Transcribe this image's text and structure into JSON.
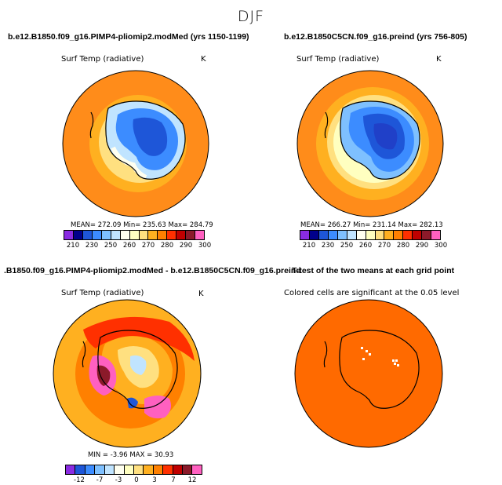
{
  "figure_title": "DJF",
  "chart_data": [
    {
      "type": "heatmap",
      "title": "b.e12.B1850.f09_g16.PIMP4-pliomip2.modMed (yrs 1150-1199)",
      "variable": "Surf Temp (radiative)",
      "units": "K",
      "stats": "MEAN= 272.09   Min= 235.63   Max= 284.79",
      "colorbar_ticks": [
        "210",
        "230",
        "250",
        "260",
        "270",
        "280",
        "290",
        "300"
      ],
      "colorbar_colors": [
        "#8a2be2",
        "#00008b",
        "#1e56d8",
        "#3c8cff",
        "#7ec0ff",
        "#c0e4ff",
        "#fffff0",
        "#ffffc0",
        "#ffe080",
        "#ffb020",
        "#ff8000",
        "#ff3000",
        "#c00000",
        "#8b1a2a",
        "#ff60c0"
      ],
      "polar_projection": "south"
    },
    {
      "type": "heatmap",
      "title": "b.e12.B1850C5CN.f09_g16.preind (yrs 756-805)",
      "variable": "Surf Temp (radiative)",
      "units": "K",
      "stats": "MEAN= 266.27   Min= 231.14   Max= 282.13",
      "colorbar_ticks": [
        "210",
        "230",
        "250",
        "260",
        "270",
        "280",
        "290",
        "300"
      ],
      "colorbar_colors": [
        "#8a2be2",
        "#00008b",
        "#1e56d8",
        "#3c8cff",
        "#7ec0ff",
        "#c0e4ff",
        "#fffff0",
        "#ffffc0",
        "#ffe080",
        "#ffb020",
        "#ff8000",
        "#ff3000",
        "#c00000",
        "#8b1a2a",
        "#ff60c0"
      ],
      "polar_projection": "south"
    },
    {
      "type": "heatmap",
      "title": ".B1850.f09_g16.PIMP4-pliomip2.modMed - b.e12.B1850C5CN.f09_g16.preind",
      "variable": "Surf Temp (radiative)",
      "units": "K",
      "stats": "MIN =   -3.96  MAX =   30.93",
      "colorbar_ticks": [
        "-12",
        "-7",
        "-3",
        "0",
        "3",
        "7",
        "12"
      ],
      "colorbar_colors": [
        "#8a2be2",
        "#1e56d8",
        "#3c8cff",
        "#7ec0ff",
        "#c0e4ff",
        "#fffff0",
        "#ffffc0",
        "#ffe080",
        "#ffb020",
        "#ff8000",
        "#ff3000",
        "#c00000",
        "#8b1a2a",
        "#ff60c0"
      ],
      "polar_projection": "south"
    },
    {
      "type": "heatmap",
      "title": "T-test of the two means at each grid point",
      "variable": "Colored cells are significant at the 0.05 level",
      "polar_projection": "south"
    }
  ]
}
